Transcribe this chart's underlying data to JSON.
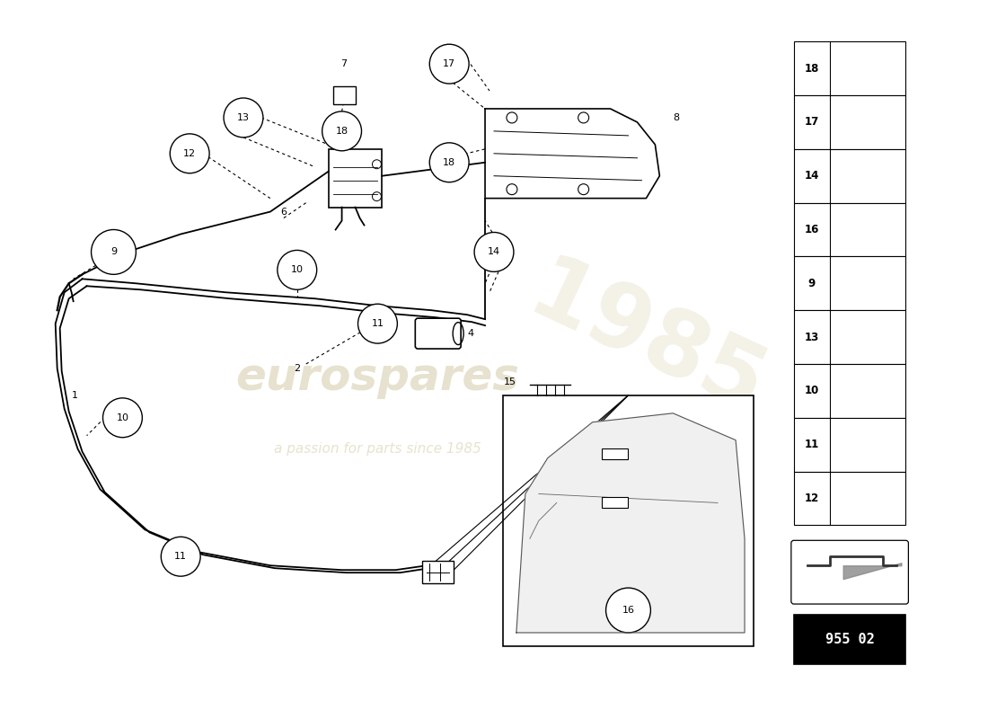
{
  "bg_color": "#ffffff",
  "part_number_box": "955 02",
  "watermark_line1": "eurospares",
  "watermark_line2": "a passion for parts since 1985",
  "right_panel_parts": [
    18,
    17,
    14,
    16,
    9,
    13,
    10,
    11,
    12
  ],
  "figsize": [
    11.0,
    8.0
  ],
  "dpi": 100,
  "xlim": [
    0,
    110
  ],
  "ylim": [
    0,
    80
  ]
}
